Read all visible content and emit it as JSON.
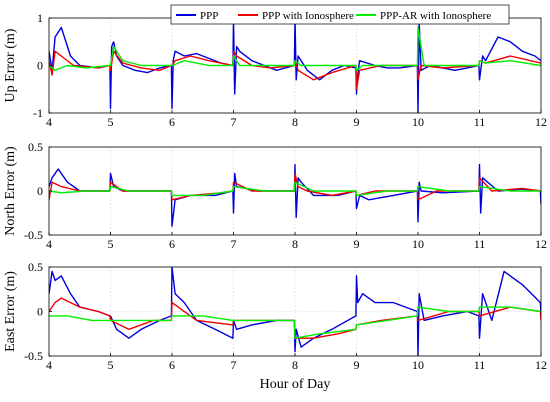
{
  "chart_data": [
    {
      "type": "line",
      "ylabel": "Up Error (m)",
      "xlim": [
        4,
        12
      ],
      "ylim": [
        -1,
        1
      ],
      "yticks": [
        -1,
        0,
        1
      ],
      "xticks": [
        4,
        5,
        6,
        7,
        8,
        9,
        10,
        11,
        12
      ],
      "grid": true,
      "legend": "top-right",
      "series": [
        {
          "name": "PPP",
          "color": "#0000dd",
          "x": [
            4.0,
            4.05,
            4.1,
            4.2,
            4.35,
            4.5,
            4.8,
            4.99,
            5.0,
            5.02,
            5.05,
            5.1,
            5.2,
            5.4,
            5.6,
            5.8,
            5.99,
            6.0,
            6.02,
            6.05,
            6.2,
            6.4,
            6.6,
            6.8,
            6.99,
            7.0,
            7.02,
            7.05,
            7.1,
            7.3,
            7.5,
            7.7,
            7.99,
            8.0,
            8.02,
            8.05,
            8.2,
            8.4,
            8.6,
            8.8,
            8.99,
            9.0,
            9.02,
            9.05,
            9.3,
            9.5,
            9.7,
            9.99,
            10.0,
            10.02,
            10.05,
            10.2,
            10.4,
            10.6,
            10.8,
            10.99,
            11.0,
            11.05,
            11.1,
            11.3,
            11.5,
            11.7,
            11.9,
            12.0
          ],
          "y": [
            0.3,
            -0.1,
            0.6,
            0.8,
            0.2,
            0.0,
            -0.05,
            0.0,
            -0.9,
            0.4,
            0.5,
            0.2,
            0.0,
            -0.1,
            -0.15,
            -0.05,
            0.0,
            -0.9,
            0.1,
            0.3,
            0.2,
            0.25,
            0.15,
            0.05,
            0.0,
            1.0,
            -0.6,
            0.4,
            0.3,
            0.1,
            0.0,
            -0.1,
            0.0,
            1.0,
            -0.3,
            0.2,
            -0.1,
            -0.3,
            -0.1,
            0.0,
            -0.05,
            -0.6,
            -0.2,
            0.1,
            0.0,
            -0.05,
            -0.05,
            0.0,
            -1.0,
            0.9,
            -0.1,
            0.0,
            -0.05,
            -0.1,
            -0.05,
            0.0,
            -0.3,
            0.2,
            0.1,
            0.6,
            0.5,
            0.3,
            0.2,
            0.1
          ]
        },
        {
          "name": "PPP with Ionosphere",
          "color": "#ee0000",
          "x": [
            4.0,
            4.05,
            4.1,
            4.2,
            4.4,
            4.8,
            4.99,
            5.0,
            5.05,
            5.2,
            5.5,
            5.8,
            5.99,
            6.0,
            6.05,
            6.3,
            6.6,
            6.99,
            7.0,
            7.05,
            7.3,
            7.6,
            7.99,
            8.0,
            8.05,
            8.3,
            8.6,
            8.99,
            9.0,
            9.05,
            9.4,
            9.99,
            10.0,
            10.05,
            10.4,
            10.99,
            11.0,
            11.1,
            11.5,
            12.0
          ],
          "y": [
            0.1,
            -0.2,
            0.3,
            0.2,
            0.0,
            -0.05,
            0.0,
            -0.1,
            0.3,
            0.05,
            -0.05,
            -0.1,
            0.0,
            0.0,
            0.1,
            0.2,
            0.1,
            0.0,
            0.3,
            0.2,
            0.0,
            -0.05,
            0.0,
            0.1,
            -0.1,
            -0.3,
            -0.15,
            0.0,
            -0.5,
            -0.1,
            0.0,
            0.0,
            -0.3,
            0.0,
            -0.05,
            0.0,
            0.1,
            0.05,
            0.2,
            0.05
          ]
        },
        {
          "name": "PPP-AR with Ionosphere",
          "color": "#00ee00",
          "x": [
            4.0,
            4.1,
            4.3,
            4.6,
            4.99,
            5.0,
            5.05,
            5.2,
            5.5,
            5.99,
            6.0,
            6.2,
            6.6,
            6.99,
            7.0,
            7.1,
            7.5,
            7.99,
            8.0,
            8.1,
            8.5,
            8.99,
            9.0,
            9.1,
            9.5,
            9.99,
            10.0,
            10.1,
            10.5,
            10.99,
            11.0,
            11.1,
            11.5,
            12.0
          ],
          "y": [
            0.0,
            -0.1,
            0.0,
            -0.05,
            0.0,
            0.0,
            0.4,
            0.1,
            0.0,
            0.0,
            0.0,
            0.1,
            0.0,
            0.0,
            0.2,
            0.0,
            0.0,
            0.0,
            0.1,
            0.0,
            0.0,
            0.0,
            -0.1,
            0.0,
            0.0,
            0.0,
            0.8,
            0.0,
            0.0,
            0.0,
            0.1,
            0.05,
            0.1,
            0.0
          ]
        }
      ]
    },
    {
      "type": "line",
      "ylabel": "North Error (m)",
      "xlim": [
        4,
        12
      ],
      "ylim": [
        -0.5,
        0.5
      ],
      "yticks": [
        -0.5,
        0,
        0.5
      ],
      "xticks": [
        4,
        5,
        6,
        7,
        8,
        9,
        10,
        11,
        12
      ],
      "grid": true,
      "series": [
        {
          "name": "PPP",
          "color": "#0000dd",
          "x": [
            4.0,
            4.05,
            4.15,
            4.3,
            4.5,
            4.99,
            5.0,
            5.05,
            5.2,
            5.6,
            5.99,
            6.0,
            6.05,
            6.3,
            6.7,
            6.99,
            7.0,
            7.02,
            7.05,
            7.4,
            7.99,
            8.0,
            8.02,
            8.05,
            8.1,
            8.3,
            8.7,
            8.99,
            9.0,
            9.05,
            9.2,
            9.6,
            9.99,
            10.0,
            10.02,
            10.05,
            10.4,
            10.99,
            11.0,
            11.02,
            11.05,
            11.3,
            11.7,
            11.99,
            12.0
          ],
          "y": [
            0.05,
            0.15,
            0.25,
            0.1,
            0.0,
            0.0,
            0.2,
            0.05,
            0.0,
            0.0,
            0.0,
            -0.4,
            -0.1,
            -0.05,
            -0.05,
            0.0,
            -0.25,
            0.2,
            0.05,
            0.0,
            0.0,
            0.3,
            -0.3,
            0.15,
            0.1,
            -0.05,
            -0.05,
            0.0,
            -0.2,
            -0.05,
            -0.1,
            -0.05,
            0.0,
            -0.35,
            0.1,
            0.0,
            -0.02,
            0.0,
            0.3,
            -0.25,
            0.15,
            0.0,
            0.02,
            0.0,
            -0.15
          ]
        },
        {
          "name": "PPP with Ionosphere",
          "color": "#ee0000",
          "x": [
            4.0,
            4.05,
            4.2,
            4.5,
            4.99,
            5.0,
            5.2,
            5.6,
            5.99,
            6.0,
            6.3,
            6.8,
            6.99,
            7.0,
            7.3,
            7.99,
            8.0,
            8.05,
            8.2,
            8.6,
            8.99,
            9.0,
            9.3,
            9.99,
            10.0,
            10.3,
            10.99,
            11.0,
            11.2,
            11.7,
            12.0
          ],
          "y": [
            -0.1,
            0.1,
            0.05,
            0.0,
            0.0,
            0.1,
            0.0,
            0.0,
            0.0,
            -0.1,
            -0.05,
            -0.02,
            0.0,
            0.1,
            0.0,
            0.0,
            0.2,
            0.05,
            0.0,
            -0.05,
            0.0,
            -0.05,
            0.0,
            0.0,
            -0.1,
            0.0,
            0.0,
            0.15,
            0.0,
            0.03,
            0.0
          ]
        },
        {
          "name": "PPP-AR with Ionosphere",
          "color": "#00ee00",
          "x": [
            4.0,
            4.2,
            4.6,
            4.99,
            5.0,
            5.3,
            5.99,
            6.0,
            6.5,
            6.99,
            7.0,
            7.5,
            7.99,
            8.0,
            8.3,
            8.99,
            9.0,
            9.5,
            9.99,
            10.0,
            10.5,
            10.99,
            11.0,
            11.5,
            12.0
          ],
          "y": [
            0.0,
            -0.02,
            0.0,
            0.0,
            0.05,
            0.0,
            0.0,
            -0.05,
            -0.05,
            0.0,
            0.05,
            0.0,
            0.0,
            0.1,
            0.0,
            0.0,
            -0.05,
            0.0,
            0.0,
            0.05,
            0.0,
            0.0,
            0.05,
            0.0,
            0.0
          ]
        }
      ]
    },
    {
      "type": "line",
      "ylabel": "East Error (m)",
      "xlabel": "Hour of Day",
      "xlim": [
        4,
        12
      ],
      "ylim": [
        -0.5,
        0.5
      ],
      "yticks": [
        -0.5,
        0,
        0.5
      ],
      "xticks": [
        4,
        5,
        6,
        7,
        8,
        9,
        10,
        11,
        12
      ],
      "grid": true,
      "series": [
        {
          "name": "PPP",
          "color": "#0000dd",
          "x": [
            4.0,
            4.05,
            4.1,
            4.2,
            4.35,
            4.5,
            4.8,
            4.99,
            5.0,
            5.1,
            5.3,
            5.5,
            5.8,
            5.99,
            6.0,
            6.05,
            6.2,
            6.4,
            6.7,
            6.99,
            7.0,
            7.05,
            7.3,
            7.7,
            7.99,
            8.0,
            8.02,
            8.1,
            8.3,
            8.6,
            8.99,
            9.0,
            9.02,
            9.1,
            9.3,
            9.6,
            9.99,
            10.0,
            10.02,
            10.1,
            10.4,
            10.8,
            10.99,
            11.0,
            11.05,
            11.2,
            11.4,
            11.7,
            11.99,
            12.0
          ],
          "y": [
            0.2,
            0.45,
            0.35,
            0.4,
            0.2,
            0.05,
            0.0,
            -0.05,
            -0.05,
            -0.2,
            -0.3,
            -0.2,
            -0.1,
            -0.05,
            0.5,
            0.2,
            0.1,
            -0.1,
            -0.2,
            -0.3,
            -0.1,
            -0.2,
            -0.15,
            -0.1,
            -0.1,
            -0.45,
            -0.2,
            -0.4,
            -0.3,
            -0.2,
            -0.05,
            0.4,
            0.1,
            0.2,
            0.1,
            0.1,
            0.0,
            -0.5,
            0.2,
            -0.1,
            -0.05,
            0.0,
            -0.05,
            -0.3,
            0.2,
            -0.1,
            0.45,
            0.3,
            0.1,
            -0.05
          ]
        },
        {
          "name": "PPP with Ionosphere",
          "color": "#ee0000",
          "x": [
            4.0,
            4.1,
            4.2,
            4.5,
            4.8,
            4.99,
            5.0,
            5.3,
            5.7,
            5.99,
            6.0,
            6.4,
            6.99,
            7.0,
            7.4,
            7.99,
            8.0,
            8.3,
            8.7,
            8.99,
            9.0,
            9.4,
            9.99,
            10.0,
            10.5,
            10.99,
            11.0,
            11.5,
            11.99,
            12.0
          ],
          "y": [
            0.0,
            0.1,
            0.15,
            0.05,
            0.0,
            -0.05,
            -0.1,
            -0.2,
            -0.1,
            -0.1,
            0.1,
            -0.1,
            -0.15,
            -0.1,
            -0.1,
            -0.1,
            -0.3,
            -0.3,
            -0.25,
            -0.2,
            -0.15,
            -0.1,
            -0.05,
            -0.1,
            0.0,
            0.0,
            -0.05,
            0.05,
            0.0,
            -0.1
          ]
        },
        {
          "name": "PPP-AR with Ionosphere",
          "color": "#00ee00",
          "x": [
            4.0,
            4.3,
            4.7,
            4.99,
            5.0,
            5.4,
            5.99,
            6.0,
            6.5,
            6.99,
            7.0,
            7.5,
            7.99,
            8.0,
            8.4,
            8.99,
            9.0,
            9.5,
            9.99,
            10.0,
            10.5,
            10.99,
            11.0,
            11.5,
            12.0
          ],
          "y": [
            -0.05,
            -0.05,
            -0.1,
            -0.1,
            -0.1,
            -0.1,
            -0.1,
            -0.05,
            -0.05,
            -0.1,
            -0.1,
            -0.1,
            -0.1,
            -0.3,
            -0.25,
            -0.2,
            -0.15,
            -0.1,
            -0.05,
            0.05,
            0.0,
            0.0,
            0.05,
            0.05,
            0.0
          ]
        }
      ]
    }
  ]
}
